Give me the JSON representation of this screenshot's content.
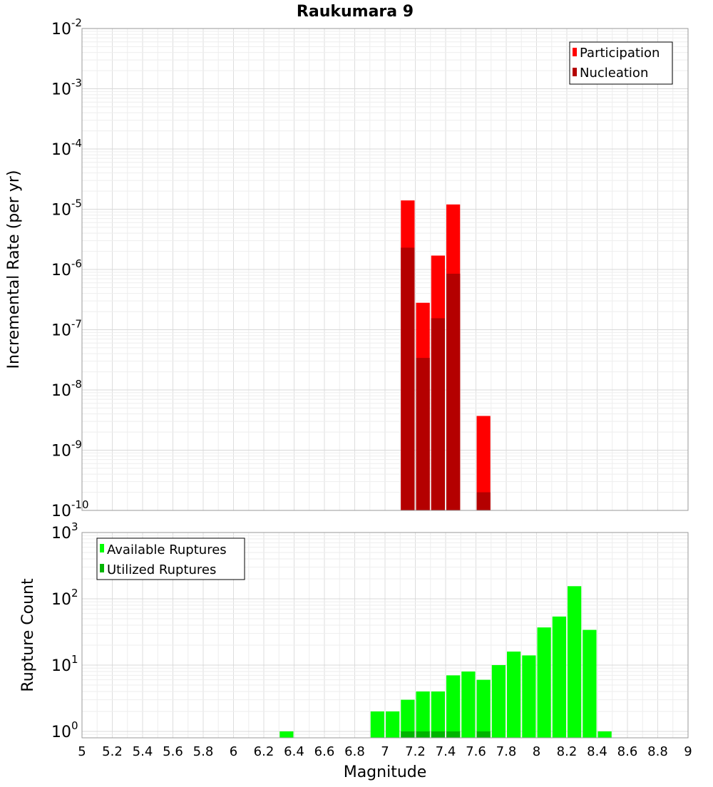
{
  "chart_data": [
    {
      "type": "bar",
      "panel": "top",
      "title": "Raukumara 9",
      "ylabel": "Incremental Rate (per yr)",
      "xlabel": "",
      "x_range": [
        5,
        9
      ],
      "y_scale": "log",
      "ylim": [
        1e-10,
        0.01
      ],
      "y_tick_exponents": [
        -10,
        -9,
        -8,
        -7,
        -6,
        -5,
        -4,
        -3,
        -2
      ],
      "bar_width": 0.1,
      "grid": true,
      "legend_position": "top-right",
      "series": [
        {
          "name": "Participation",
          "color": "#ff0000",
          "x": [
            7.15,
            7.25,
            7.35,
            7.45,
            7.65
          ],
          "values": [
            1.4e-05,
            2.8e-07,
            1.7e-06,
            1.2e-05,
            3.7e-09
          ]
        },
        {
          "name": "Nucleation",
          "color": "#b40000",
          "x": [
            7.15,
            7.25,
            7.35,
            7.45,
            7.65
          ],
          "values": [
            2.3e-06,
            3.4e-08,
            1.55e-07,
            8.5e-07,
            2e-10
          ]
        }
      ]
    },
    {
      "type": "bar",
      "panel": "bottom",
      "title": "",
      "ylabel": "Rupture Count",
      "xlabel": "Magnitude",
      "x_range": [
        5,
        9
      ],
      "x_ticks": [
        "5",
        "5.2",
        "5.4",
        "5.6",
        "5.8",
        "6",
        "6.2",
        "6.4",
        "6.6",
        "6.8",
        "7",
        "7.2",
        "7.4",
        "7.6",
        "7.8",
        "8",
        "8.2",
        "8.4",
        "8.6",
        "8.8",
        "9"
      ],
      "y_scale": "log",
      "ylim": [
        0.8,
        1000
      ],
      "y_tick_exponents": [
        0,
        1,
        2,
        3
      ],
      "bar_width": 0.1,
      "grid": true,
      "legend_position": "top-left",
      "series": [
        {
          "name": "Available Ruptures",
          "color": "#00ff00",
          "x": [
            6.35,
            6.95,
            7.05,
            7.15,
            7.25,
            7.35,
            7.45,
            7.55,
            7.65,
            7.75,
            7.85,
            7.95,
            8.05,
            8.15,
            8.25,
            8.35,
            8.45
          ],
          "values": [
            1,
            2,
            2,
            3,
            4,
            4,
            7,
            8,
            6,
            10,
            16,
            14,
            37,
            54,
            155,
            34,
            1
          ]
        },
        {
          "name": "Utilized Ruptures",
          "color": "#00b400",
          "x": [
            7.15,
            7.25,
            7.35,
            7.45,
            7.65
          ],
          "values": [
            1,
            1,
            1,
            1,
            1
          ]
        }
      ]
    }
  ]
}
